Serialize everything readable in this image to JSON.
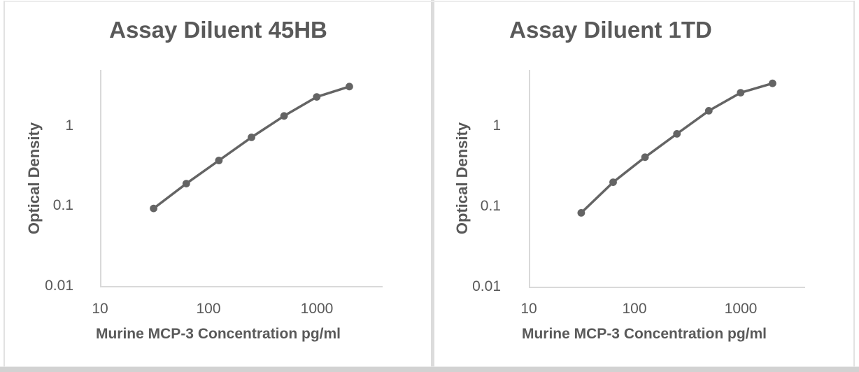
{
  "page": {
    "background": "#ffffff"
  },
  "colors": {
    "series": "#646464",
    "axis_line": "#d9d9d9",
    "text": "#595959",
    "frame_border": "#e2e2e2",
    "divider": "#dcdcdc",
    "bottom_bar": "#d2d2d2"
  },
  "chart_data": [
    {
      "type": "line",
      "title": "Assay Diluent 45HB",
      "xlabel": "Murine MCP-3 Concentration pg/ml",
      "ylabel": "Optical Density",
      "xscale": "log",
      "yscale": "log",
      "xlim": [
        10,
        4000
      ],
      "ylim": [
        0.01,
        5
      ],
      "grid": false,
      "legend": false,
      "marker": "circle",
      "x": [
        31.25,
        62.5,
        125,
        250,
        500,
        1000,
        2000
      ],
      "y": [
        0.093,
        0.19,
        0.37,
        0.72,
        1.33,
        2.3,
        3.1
      ],
      "xticks": {
        "values": [
          10,
          100,
          1000
        ],
        "labels": [
          "10",
          "100",
          "1000"
        ]
      },
      "yticks": {
        "values": [
          1,
          0.1,
          0.01
        ],
        "labels": [
          "1",
          "0.1",
          "0.01"
        ]
      }
    },
    {
      "type": "line",
      "title": "Assay Diluent 1TD",
      "xlabel": "Murine MCP-3 Concentration pg/ml",
      "ylabel": "Optical Density",
      "xscale": "log",
      "yscale": "log",
      "xlim": [
        10,
        4000
      ],
      "ylim": [
        0.01,
        5
      ],
      "grid": false,
      "legend": false,
      "marker": "circle",
      "x": [
        31.25,
        62.5,
        125,
        250,
        500,
        1000,
        2000
      ],
      "y": [
        0.083,
        0.2,
        0.41,
        0.8,
        1.55,
        2.6,
        3.4
      ],
      "xticks": {
        "values": [
          10,
          100,
          1000
        ],
        "labels": [
          "10",
          "100",
          "1000"
        ]
      },
      "yticks": {
        "values": [
          1,
          0.1,
          0.01
        ],
        "labels": [
          "1",
          "0.1",
          "0.01"
        ]
      }
    }
  ]
}
